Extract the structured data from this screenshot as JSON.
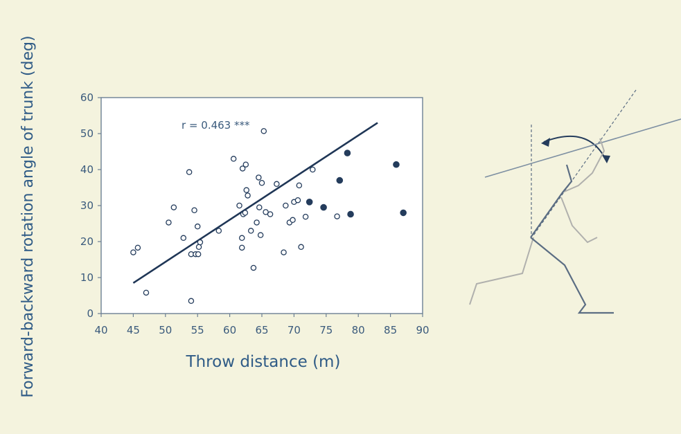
{
  "colors": {
    "background": "#f4f3de",
    "plot_area": "#ffffff",
    "axis": "#6b7f94",
    "text": "#3a5a7c",
    "title_text": "#2f5b86",
    "marker": "#243c5c",
    "line": "#1f3656",
    "figure_dark": "#5b6d83",
    "figure_light": "#b0b0ad"
  },
  "chart_data": {
    "type": "scatter",
    "title": "",
    "xlabel": "Throw distance (m)",
    "ylabel": "Forward-backward rotation angle of trunk (deg)",
    "xlim": [
      40,
      90
    ],
    "ylim": [
      0,
      60
    ],
    "xticks": [
      40,
      45,
      50,
      55,
      60,
      65,
      70,
      75,
      80,
      85,
      90
    ],
    "yticks": [
      0,
      10,
      20,
      30,
      40,
      50,
      60
    ],
    "grid": false,
    "annotation": "r = 0.463 ***",
    "regression_line": {
      "x": [
        45,
        83
      ],
      "y": [
        8.5,
        53
      ]
    },
    "series": [
      {
        "marker": "open-circle",
        "points": [
          [
            45,
            17
          ],
          [
            45.7,
            18.3
          ],
          [
            47,
            5.8
          ],
          [
            50.5,
            25.3
          ],
          [
            51.3,
            29.5
          ],
          [
            52.8,
            21
          ],
          [
            53.7,
            39.3
          ],
          [
            54,
            16.5
          ],
          [
            54,
            3.5
          ],
          [
            54.5,
            28.7
          ],
          [
            54.7,
            16.5
          ],
          [
            55,
            24.2
          ],
          [
            55.1,
            16.5
          ],
          [
            55.2,
            18.5
          ],
          [
            55.4,
            19.8
          ],
          [
            58.3,
            23
          ],
          [
            60.6,
            43
          ],
          [
            61.5,
            30
          ],
          [
            61.9,
            18.3
          ],
          [
            61.9,
            21
          ],
          [
            62,
            40.3
          ],
          [
            62.1,
            27.6
          ],
          [
            62.4,
            28
          ],
          [
            62.5,
            41.4
          ],
          [
            62.6,
            34.3
          ],
          [
            62.8,
            32.8
          ],
          [
            63.3,
            23
          ],
          [
            63.7,
            12.7
          ],
          [
            64.2,
            25.3
          ],
          [
            64.5,
            37.8
          ],
          [
            64.6,
            29.5
          ],
          [
            64.8,
            21.8
          ],
          [
            65,
            36.3
          ],
          [
            65.3,
            50.7
          ],
          [
            65.6,
            28.2
          ],
          [
            66.3,
            27.6
          ],
          [
            67.3,
            36
          ],
          [
            68.4,
            17
          ],
          [
            68.7,
            30
          ],
          [
            69.3,
            25.3
          ],
          [
            69.8,
            26
          ],
          [
            70,
            31
          ],
          [
            70.6,
            31.5
          ],
          [
            70.8,
            35.6
          ],
          [
            71.1,
            18.5
          ],
          [
            71.8,
            26.9
          ],
          [
            72.9,
            40
          ],
          [
            76.7,
            27
          ]
        ]
      },
      {
        "marker": "filled-circle",
        "points": [
          [
            72.4,
            31
          ],
          [
            74.6,
            29.5
          ],
          [
            77.1,
            37
          ],
          [
            78.3,
            44.6
          ],
          [
            78.8,
            27.6
          ],
          [
            85.9,
            41.4
          ],
          [
            87,
            28
          ]
        ]
      }
    ]
  }
}
